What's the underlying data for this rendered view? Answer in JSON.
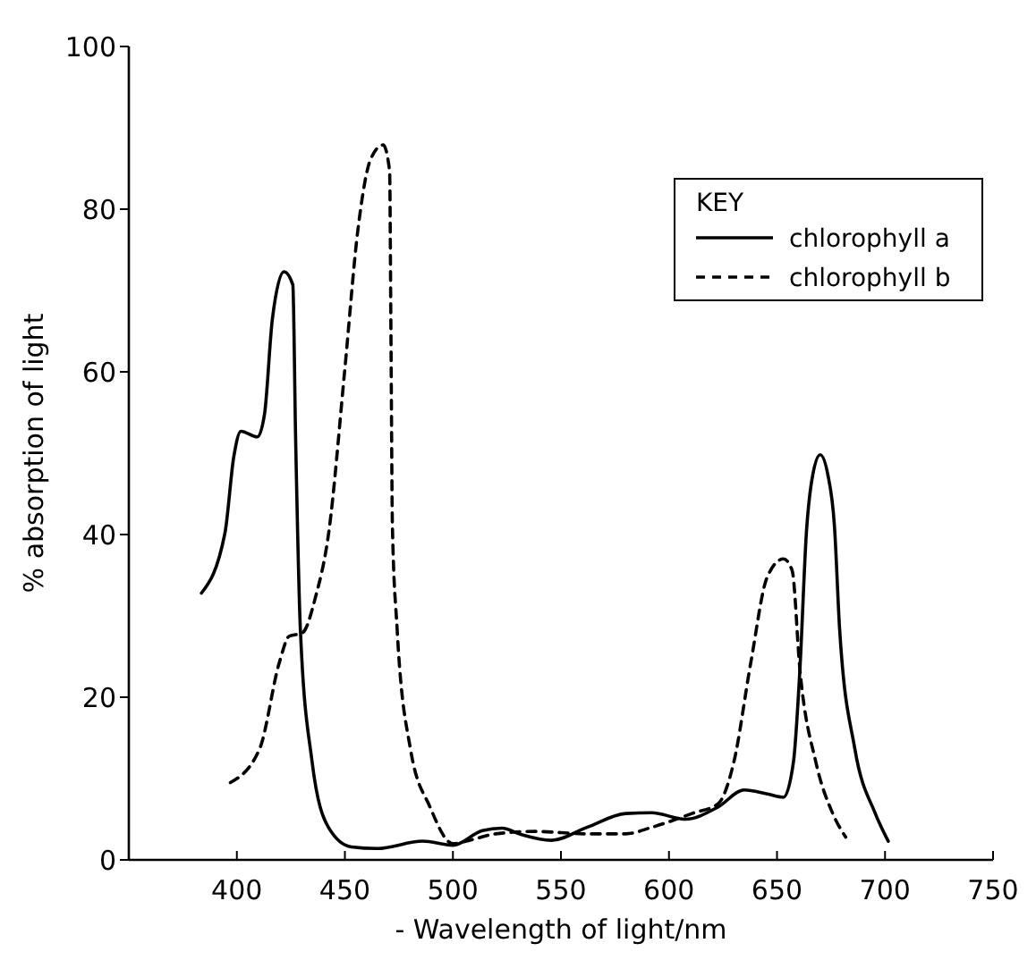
{
  "chart_data": {
    "type": "line",
    "xlabel": "- Wavelength of light/nm",
    "ylabel": "% absorption of light",
    "legend_title": "KEY",
    "legend": "top right",
    "xlim": [
      350,
      750
    ],
    "xticks": [
      400,
      450,
      500,
      550,
      600,
      650,
      700,
      750
    ],
    "ylim": [
      0,
      100
    ],
    "yticks": [
      0,
      20,
      40,
      60,
      80,
      100
    ],
    "grid": false,
    "marker": "none",
    "series": [
      {
        "name": "chlorophyll a",
        "color": "#000000",
        "line_style": "solid",
        "x": [
          383.6,
          394.5,
          398.6,
          401.9,
          409.5,
          412.8,
          416.4,
          421.8,
          425.9,
          427.2,
          429.4,
          434.8,
          442.4,
          453,
          465,
          486,
          500,
          513.6,
          522.7,
          531.8,
          545.5,
          562,
          580,
          592,
          607.6,
          622.7,
          634.8,
          645.5,
          653,
          657.6,
          660.6,
          663.6,
          666.6,
          670,
          673.5,
          676.6,
          679,
          686,
          695.5,
          701.5
        ],
        "values": [
          32.8,
          40.2,
          49.6,
          52.7,
          52,
          54.8,
          66.4,
          72.3,
          70.7,
          51.8,
          28.3,
          12.1,
          4,
          1.6,
          1.4,
          2.3,
          1.8,
          3.6,
          3.9,
          3.1,
          2.4,
          4,
          5.7,
          5.8,
          5,
          6.5,
          8.6,
          8.1,
          7.7,
          12,
          23.4,
          40.2,
          47.4,
          49.8,
          47.4,
          41,
          28.3,
          13.7,
          5.7,
          2.3
        ]
      },
      {
        "name": "chlorophyll b",
        "color": "#000000",
        "line_style": "dashed",
        "x": [
          397,
          410.6,
          419.7,
          424.2,
          430.3,
          436.4,
          442.5,
          450,
          456,
          462,
          467.7,
          470.7,
          471.3,
          472,
          474.2,
          480.3,
          489.4,
          500,
          507.6,
          519.7,
          537.9,
          562,
          580,
          592,
          610.6,
          622.7,
          630,
          637.9,
          645.5,
          653,
          657,
          660.6,
          668,
          675.8,
          681.8
        ],
        "values": [
          9.5,
          13.7,
          24.3,
          27.5,
          27.9,
          32.3,
          40.2,
          60.4,
          77.4,
          86.2,
          87.9,
          84.7,
          65.3,
          41,
          28.3,
          13.7,
          6.5,
          2,
          2.4,
          3.2,
          3.5,
          3.2,
          3.2,
          4,
          5.7,
          6.9,
          12,
          24.3,
          34.8,
          37,
          35.6,
          23.4,
          12,
          5.7,
          2.8
        ]
      }
    ]
  }
}
